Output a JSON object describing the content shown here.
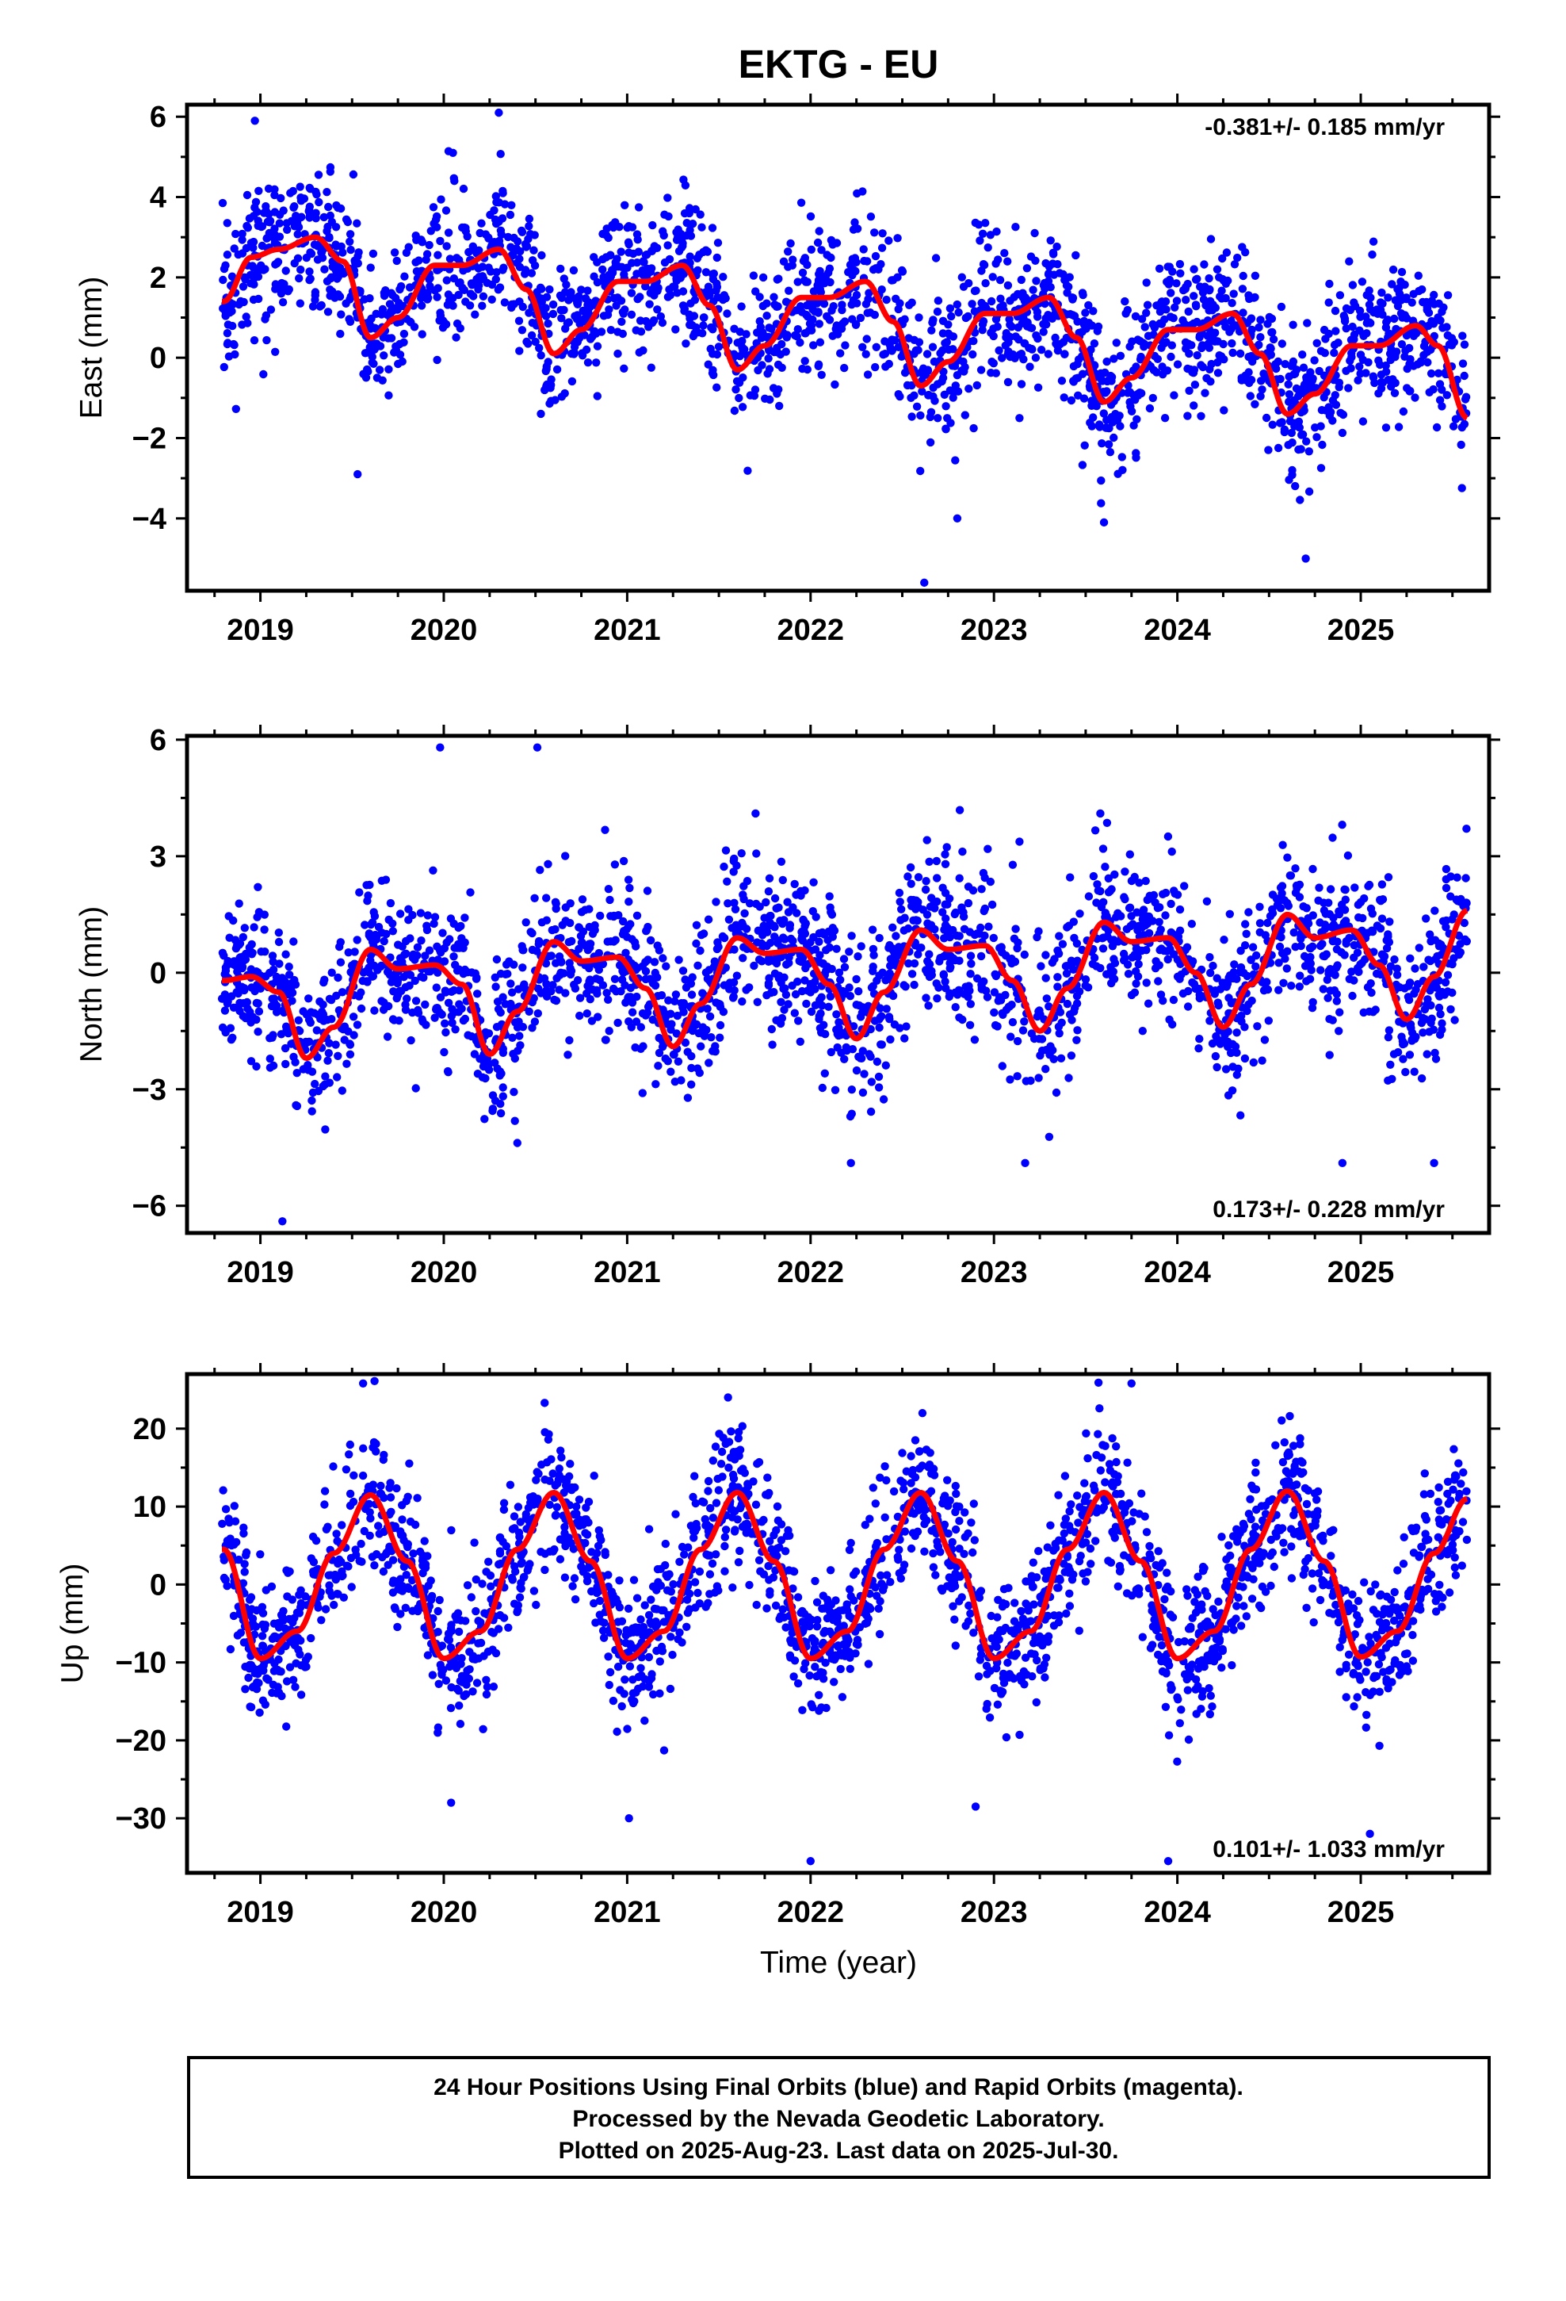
{
  "title": "EKTG - EU",
  "colors": {
    "points": "#0000ff",
    "fit": "#ff0000",
    "frame": "#000000"
  },
  "caption": [
    "24 Hour Positions Using Final Orbits (blue) and Rapid Orbits (magenta).",
    "Processed by the Nevada Geodetic Laboratory.",
    "Plotted on 2025-Aug-23. Last data on 2025-Jul-30."
  ],
  "chart_data": [
    {
      "type": "scatter",
      "panel": "east",
      "ylabel": "East (mm)",
      "xlabel": "",
      "rate_label": "-0.381+/- 0.185 mm/yr",
      "rate_position": "top-right",
      "xlim": [
        2018.6,
        2025.7
      ],
      "ylim": [
        -5.8,
        6.3
      ],
      "xticks": [
        2019,
        2020,
        2021,
        2022,
        2023,
        2024,
        2025
      ],
      "xtick_labels": [
        "2019",
        "2020",
        "2021",
        "2022",
        "2023",
        "2024",
        "2025"
      ],
      "yticks": [
        -4,
        -2,
        0,
        2,
        4,
        6
      ],
      "ytick_labels": [
        "−4",
        "−2",
        "0",
        "2",
        "4",
        "6"
      ],
      "x_range": [
        2018.79,
        2025.58
      ],
      "trend": {
        "offset": 0.9,
        "slope": -0.381,
        "ref_year": 2022.2
      },
      "seasonal": [
        {
          "t": 2018.8,
          "v": 0.5
        },
        {
          "t": 2018.95,
          "v": 1.6
        },
        {
          "t": 2019.1,
          "v": 1.8
        },
        {
          "t": 2019.3,
          "v": 2.1
        },
        {
          "t": 2019.45,
          "v": 1.5
        },
        {
          "t": 2019.6,
          "v": -0.4
        },
        {
          "t": 2019.75,
          "v": 0.1
        },
        {
          "t": 2019.95,
          "v": 1.4
        },
        {
          "t": 2020.1,
          "v": 1.4
        },
        {
          "t": 2020.3,
          "v": 1.8
        },
        {
          "t": 2020.45,
          "v": 0.8
        },
        {
          "t": 2020.6,
          "v": -0.8
        },
        {
          "t": 2020.75,
          "v": -0.2
        },
        {
          "t": 2020.95,
          "v": 1.0
        },
        {
          "t": 2021.1,
          "v": 1.0
        },
        {
          "t": 2021.3,
          "v": 1.4
        },
        {
          "t": 2021.45,
          "v": 0.4
        },
        {
          "t": 2021.6,
          "v": -1.2
        },
        {
          "t": 2021.75,
          "v": -0.6
        },
        {
          "t": 2021.95,
          "v": 0.6
        },
        {
          "t": 2022.1,
          "v": 0.6
        },
        {
          "t": 2022.3,
          "v": 1.0
        },
        {
          "t": 2022.45,
          "v": 0.0
        },
        {
          "t": 2022.6,
          "v": -1.6
        },
        {
          "t": 2022.75,
          "v": -1.0
        },
        {
          "t": 2022.95,
          "v": 0.2
        },
        {
          "t": 2023.1,
          "v": 0.2
        },
        {
          "t": 2023.3,
          "v": 0.6
        },
        {
          "t": 2023.45,
          "v": -0.4
        },
        {
          "t": 2023.6,
          "v": -2.0
        },
        {
          "t": 2023.75,
          "v": -1.4
        },
        {
          "t": 2023.95,
          "v": -0.2
        },
        {
          "t": 2024.1,
          "v": -0.2
        },
        {
          "t": 2024.3,
          "v": 0.2
        },
        {
          "t": 2024.45,
          "v": -0.8
        },
        {
          "t": 2024.6,
          "v": -2.3
        },
        {
          "t": 2024.75,
          "v": -1.8
        },
        {
          "t": 2024.95,
          "v": -0.6
        },
        {
          "t": 2025.1,
          "v": -0.6
        },
        {
          "t": 2025.3,
          "v": -0.1
        },
        {
          "t": 2025.42,
          "v": -0.6
        },
        {
          "t": 2025.58,
          "v": -2.4
        }
      ],
      "noise_sd": 0.9,
      "outliers": [
        {
          "t": 2018.97,
          "v": 5.9
        },
        {
          "t": 2020.3,
          "v": 6.1
        },
        {
          "t": 2020.05,
          "v": 5.1
        },
        {
          "t": 2022.62,
          "v": -5.6
        },
        {
          "t": 2024.7,
          "v": -5.0
        },
        {
          "t": 2023.6,
          "v": -4.1
        },
        {
          "t": 2022.8,
          "v": -4.0
        },
        {
          "t": 2019.53,
          "v": -2.9
        }
      ]
    },
    {
      "type": "scatter",
      "panel": "north",
      "ylabel": "North (mm)",
      "xlabel": "",
      "rate_label": "0.173+/- 0.228 mm/yr",
      "rate_position": "bottom-right",
      "xlim": [
        2018.6,
        2025.7
      ],
      "ylim": [
        -6.7,
        6.1
      ],
      "xticks": [
        2019,
        2020,
        2021,
        2022,
        2023,
        2024,
        2025
      ],
      "xtick_labels": [
        "2019",
        "2020",
        "2021",
        "2022",
        "2023",
        "2024",
        "2025"
      ],
      "yticks": [
        -6,
        -3,
        0,
        3,
        6
      ],
      "ytick_labels": [
        "−6",
        "−3",
        "0",
        "3",
        "6"
      ],
      "x_range": [
        2018.79,
        2025.58
      ],
      "trend": {
        "offset": 0.0,
        "slope": 0.173,
        "ref_year": 2022.2
      },
      "seasonal": [
        {
          "t": 2018.8,
          "v": -0.2
        },
        {
          "t": 2018.95,
          "v": -0.1
        },
        {
          "t": 2019.1,
          "v": -0.5
        },
        {
          "t": 2019.25,
          "v": -2.2
        },
        {
          "t": 2019.4,
          "v": -1.4
        },
        {
          "t": 2019.6,
          "v": 0.6
        },
        {
          "t": 2019.75,
          "v": 0.1
        },
        {
          "t": 2019.95,
          "v": 0.2
        },
        {
          "t": 2020.1,
          "v": -0.3
        },
        {
          "t": 2020.25,
          "v": -2.1
        },
        {
          "t": 2020.4,
          "v": -1.0
        },
        {
          "t": 2020.6,
          "v": 0.8
        },
        {
          "t": 2020.75,
          "v": 0.3
        },
        {
          "t": 2020.95,
          "v": 0.4
        },
        {
          "t": 2021.1,
          "v": -0.4
        },
        {
          "t": 2021.25,
          "v": -1.9
        },
        {
          "t": 2021.4,
          "v": -0.8
        },
        {
          "t": 2021.6,
          "v": 0.9
        },
        {
          "t": 2021.75,
          "v": 0.5
        },
        {
          "t": 2021.95,
          "v": 0.6
        },
        {
          "t": 2022.1,
          "v": -0.3
        },
        {
          "t": 2022.25,
          "v": -1.7
        },
        {
          "t": 2022.4,
          "v": -0.5
        },
        {
          "t": 2022.6,
          "v": 1.1
        },
        {
          "t": 2022.75,
          "v": 0.6
        },
        {
          "t": 2022.95,
          "v": 0.7
        },
        {
          "t": 2023.1,
          "v": -0.2
        },
        {
          "t": 2023.25,
          "v": -1.5
        },
        {
          "t": 2023.4,
          "v": -0.4
        },
        {
          "t": 2023.6,
          "v": 1.3
        },
        {
          "t": 2023.75,
          "v": 0.8
        },
        {
          "t": 2023.95,
          "v": 0.9
        },
        {
          "t": 2024.1,
          "v": 0.0
        },
        {
          "t": 2024.25,
          "v": -1.4
        },
        {
          "t": 2024.4,
          "v": -0.3
        },
        {
          "t": 2024.6,
          "v": 1.5
        },
        {
          "t": 2024.75,
          "v": 0.9
        },
        {
          "t": 2024.95,
          "v": 1.1
        },
        {
          "t": 2025.1,
          "v": 0.2
        },
        {
          "t": 2025.25,
          "v": -1.2
        },
        {
          "t": 2025.4,
          "v": -0.1
        },
        {
          "t": 2025.58,
          "v": 1.6
        }
      ],
      "noise_sd": 1.0,
      "outliers": [
        {
          "t": 2019.12,
          "v": -6.4
        },
        {
          "t": 2019.98,
          "v": 5.8
        },
        {
          "t": 2020.51,
          "v": 5.8
        },
        {
          "t": 2022.22,
          "v": -4.9
        },
        {
          "t": 2023.17,
          "v": -4.9
        },
        {
          "t": 2024.9,
          "v": -4.9
        },
        {
          "t": 2025.4,
          "v": -4.9
        },
        {
          "t": 2021.7,
          "v": 4.1
        },
        {
          "t": 2023.58,
          "v": 4.1
        }
      ]
    },
    {
      "type": "scatter",
      "panel": "up",
      "ylabel": "Up (mm)",
      "xlabel": "Time (year)",
      "rate_label": "0.101+/- 1.033 mm/yr",
      "rate_position": "bottom-right",
      "xlim": [
        2018.6,
        2025.7
      ],
      "ylim": [
        -37,
        27
      ],
      "xticks": [
        2019,
        2020,
        2021,
        2022,
        2023,
        2024,
        2025
      ],
      "xtick_labels": [
        "2019",
        "2020",
        "2021",
        "2022",
        "2023",
        "2024",
        "2025"
      ],
      "yticks": [
        -30,
        -20,
        -10,
        0,
        10,
        20
      ],
      "ytick_labels": [
        "−30",
        "−20",
        "−10",
        "0",
        "10",
        "20"
      ],
      "x_range": [
        2018.79,
        2025.58
      ],
      "trend": {
        "offset": 0.0,
        "slope": 0.101,
        "ref_year": 2022.2
      },
      "seasonal": [
        {
          "t": 2018.8,
          "v": 4.5
        },
        {
          "t": 2019.0,
          "v": -9.5
        },
        {
          "t": 2019.2,
          "v": -6.0
        },
        {
          "t": 2019.4,
          "v": 4.0
        },
        {
          "t": 2019.6,
          "v": 11.5
        },
        {
          "t": 2019.8,
          "v": 3.0
        },
        {
          "t": 2020.0,
          "v": -9.5
        },
        {
          "t": 2020.2,
          "v": -6.0
        },
        {
          "t": 2020.4,
          "v": 4.5
        },
        {
          "t": 2020.6,
          "v": 11.8
        },
        {
          "t": 2020.8,
          "v": 3.0
        },
        {
          "t": 2021.0,
          "v": -9.5
        },
        {
          "t": 2021.2,
          "v": -6.0
        },
        {
          "t": 2021.4,
          "v": 4.5
        },
        {
          "t": 2021.6,
          "v": 11.8
        },
        {
          "t": 2021.8,
          "v": 3.0
        },
        {
          "t": 2022.0,
          "v": -9.5
        },
        {
          "t": 2022.2,
          "v": -6.0
        },
        {
          "t": 2022.4,
          "v": 4.5
        },
        {
          "t": 2022.6,
          "v": 11.8
        },
        {
          "t": 2022.8,
          "v": 3.0
        },
        {
          "t": 2023.0,
          "v": -9.5
        },
        {
          "t": 2023.2,
          "v": -6.0
        },
        {
          "t": 2023.4,
          "v": 4.5
        },
        {
          "t": 2023.6,
          "v": 11.8
        },
        {
          "t": 2023.8,
          "v": 3.0
        },
        {
          "t": 2024.0,
          "v": -9.5
        },
        {
          "t": 2024.2,
          "v": -6.0
        },
        {
          "t": 2024.4,
          "v": 4.5
        },
        {
          "t": 2024.6,
          "v": 12.0
        },
        {
          "t": 2024.8,
          "v": 3.0
        },
        {
          "t": 2025.0,
          "v": -9.3
        },
        {
          "t": 2025.2,
          "v": -6.0
        },
        {
          "t": 2025.4,
          "v": 4.0
        },
        {
          "t": 2025.58,
          "v": 11.0
        }
      ],
      "noise_sd": 4.5,
      "outliers": [
        {
          "t": 2022.0,
          "v": -35.5
        },
        {
          "t": 2023.95,
          "v": -35.5
        },
        {
          "t": 2025.05,
          "v": -32.0
        },
        {
          "t": 2020.04,
          "v": -28.0
        },
        {
          "t": 2022.9,
          "v": -28.5
        },
        {
          "t": 2021.01,
          "v": -30.0
        },
        {
          "t": 2019.56,
          "v": 25.8
        },
        {
          "t": 2023.57,
          "v": 25.9
        },
        {
          "t": 2021.55,
          "v": 24.0
        },
        {
          "t": 2020.55,
          "v": 23.3
        },
        {
          "t": 2022.61,
          "v": 22.0
        },
        {
          "t": 2023.75,
          "v": 25.8
        }
      ]
    }
  ]
}
